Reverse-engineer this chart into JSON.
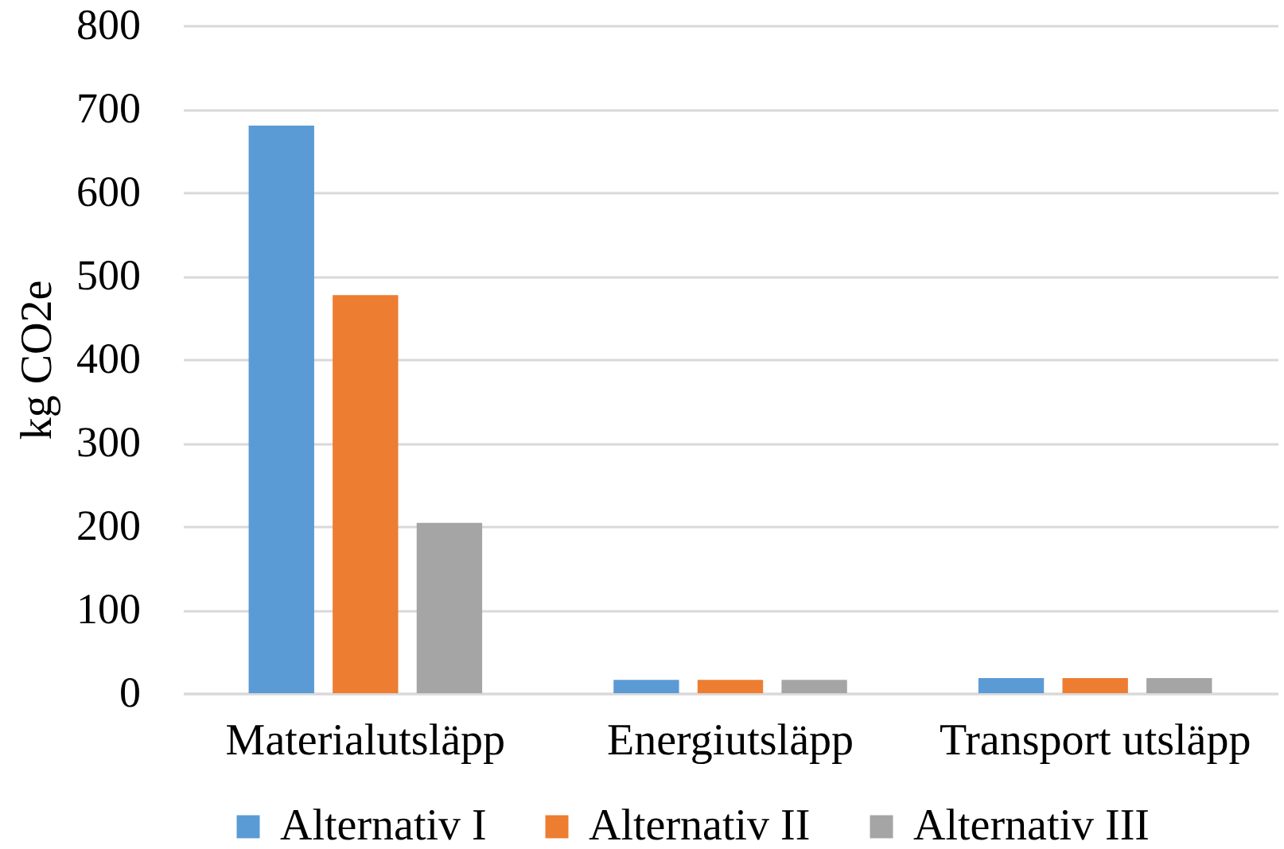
{
  "chart_data": {
    "type": "bar",
    "ylabel": "kg CO2e",
    "categories": [
      "Materialutsläpp",
      "Energiutsläpp",
      "Transport utsläpp"
    ],
    "series": [
      {
        "name": "Alternativ I",
        "color": "#5b9bd5",
        "values": [
          680,
          16,
          18
        ]
      },
      {
        "name": "Alternativ II",
        "color": "#ed7d31",
        "values": [
          477,
          16,
          18
        ]
      },
      {
        "name": "Alternativ III",
        "color": "#a5a5a5",
        "values": [
          204,
          16,
          18
        ]
      }
    ],
    "ylim": [
      0,
      800
    ],
    "yticks": [
      0,
      100,
      200,
      300,
      400,
      500,
      600,
      700,
      800
    ],
    "grid": "y",
    "legend": "bottom"
  }
}
